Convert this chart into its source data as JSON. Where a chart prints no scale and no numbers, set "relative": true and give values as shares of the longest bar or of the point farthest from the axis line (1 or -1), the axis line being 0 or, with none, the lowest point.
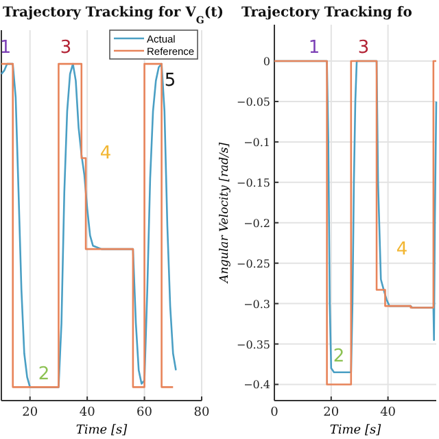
{
  "chart_data": [
    {
      "type": "line",
      "title": "Trajectory Tracking for V$_{G}$(t)",
      "xlabel": "Time [s]",
      "relative": true,
      "xlim": [
        10,
        80
      ],
      "xticks": [
        20,
        40,
        60,
        80
      ],
      "grid": "x",
      "legend": "top right",
      "annotations": [
        "1",
        "2",
        "3",
        "4",
        "5"
      ],
      "series": [
        {
          "name": "Actual",
          "color": "#4a9fc4",
          "x": [
            10,
            11,
            12,
            14,
            15,
            16,
            17,
            18,
            19,
            20,
            30,
            31,
            32,
            33,
            34,
            35,
            36,
            37,
            38,
            39,
            40,
            41,
            42,
            45,
            56,
            57,
            58,
            59,
            60,
            61,
            62,
            63,
            64,
            65,
            66,
            67,
            68,
            69,
            70,
            71
          ],
          "values": [
            0.97,
            0.98,
            1,
            1,
            0.9,
            0.62,
            0.33,
            0.14,
            0.07,
            0.04,
            0.04,
            0.23,
            0.62,
            0.86,
            0.97,
            1,
            0.95,
            0.81,
            0.73,
            0.67,
            0.57,
            0.49,
            0.46,
            0.45,
            0.45,
            0.23,
            0.09,
            0.05,
            0.06,
            0.33,
            0.66,
            0.86,
            0.95,
            0.99,
            1,
            0.86,
            0.52,
            0.28,
            0.14,
            0.09
          ]
        },
        {
          "name": "Reference",
          "color": "#e8845a",
          "x": [
            10,
            14,
            14,
            30,
            30,
            38,
            38,
            39.5,
            39.5,
            56,
            56,
            60,
            60,
            66,
            66,
            70
          ],
          "values": [
            1,
            1,
            0.04,
            0.04,
            1,
            1,
            0.72,
            0.72,
            0.45,
            0.45,
            0.04,
            0.04,
            1,
            1,
            0.04,
            0.04
          ]
        }
      ]
    },
    {
      "type": "line",
      "title": "Trajectory Tracking fo",
      "xlabel": "Time [s]",
      "ylabel": "Angular Velocity [rad/s]",
      "xlim": [
        0,
        57
      ],
      "xticks": [
        0,
        20,
        40
      ],
      "ylim": [
        -0.42,
        0.045
      ],
      "yticks": [
        0,
        -0.05,
        -0.1,
        -0.15,
        -0.2,
        -0.25,
        -0.3,
        -0.35,
        -0.4
      ],
      "grid": true,
      "annotations": [
        "1",
        "2",
        "3",
        "4"
      ],
      "series": [
        {
          "color": "#4a9fc4",
          "x": [
            0,
            18.5,
            19,
            19.5,
            20,
            21,
            27,
            27.5,
            28,
            28.5,
            29,
            36,
            36.5,
            37.5,
            38.5,
            39.5,
            40.5,
            48,
            48.5,
            56,
            56.2,
            56.5,
            57
          ],
          "values": [
            0,
            0,
            -0.1,
            -0.3,
            -0.38,
            -0.385,
            -0.385,
            -0.3,
            -0.15,
            -0.05,
            0,
            0,
            -0.15,
            -0.27,
            -0.283,
            -0.295,
            -0.303,
            -0.303,
            -0.305,
            -0.305,
            -0.345,
            -0.2,
            -0.05
          ]
        },
        {
          "color": "#e8845a",
          "x": [
            0,
            18.5,
            18.5,
            27,
            27,
            36,
            36,
            39,
            39,
            48,
            48,
            56,
            56,
            57
          ],
          "values": [
            0,
            0,
            -0.4,
            -0.4,
            0,
            0,
            -0.283,
            -0.283,
            -0.303,
            -0.303,
            -0.305,
            -0.305,
            0,
            0
          ]
        }
      ]
    }
  ]
}
